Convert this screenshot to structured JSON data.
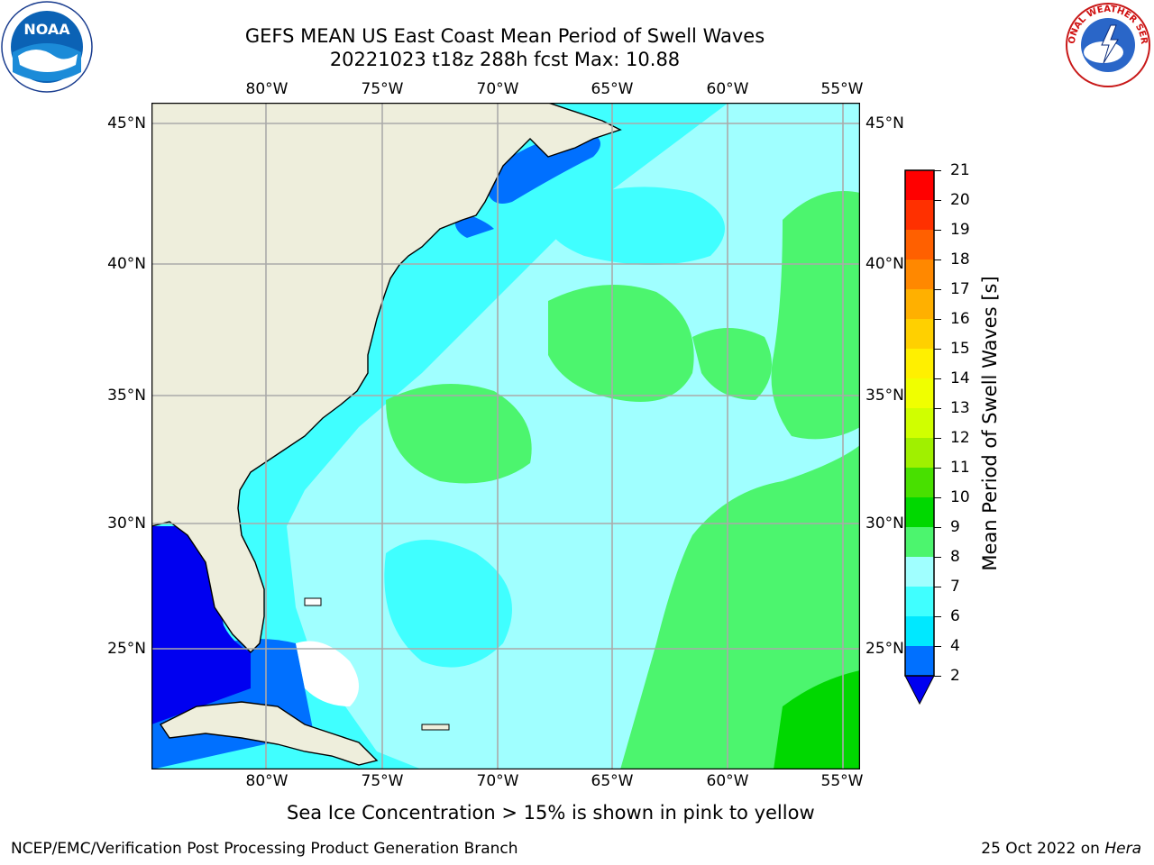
{
  "header": {
    "title_line1": "GEFS MEAN US East Coast Mean Period of Swell Waves",
    "title_line2": "20221023 t18z 288h fcst   Max: 10.88"
  },
  "logos": {
    "left": "noaa-logo",
    "left_text": "NOAA",
    "right": "national-weather-service-logo",
    "right_text": "NATIONAL WEATHER SERVICE"
  },
  "map": {
    "longitude_labels": [
      "80°W",
      "75°W",
      "70°W",
      "65°W",
      "60°W",
      "55°W"
    ],
    "latitude_labels": [
      "45°N",
      "40°N",
      "35°N",
      "30°N",
      "25°N"
    ],
    "extent": {
      "lon_min": -85,
      "lon_max": -54.5,
      "lat_min": 20.5,
      "lat_max": 46
    },
    "land_color": "#eeeedc",
    "grid_color": "#aaaaaa"
  },
  "colorbar": {
    "label": "Mean Period of Swell Waves [s]",
    "ticks": [
      "2",
      "4",
      "6",
      "7",
      "8",
      "9",
      "10",
      "11",
      "12",
      "13",
      "14",
      "15",
      "16",
      "17",
      "18",
      "19",
      "20",
      "21"
    ],
    "colors": [
      "#0070ff",
      "#00e8ff",
      "#40ffff",
      "#a0ffff",
      "#4cf56e",
      "#00d800",
      "#48e000",
      "#a0f000",
      "#d0ff00",
      "#f0ff00",
      "#fff000",
      "#ffd000",
      "#ffb000",
      "#ff8800",
      "#ff6000",
      "#ff3000",
      "#ff0000"
    ],
    "extend_min_color": "#0000f0"
  },
  "footer": {
    "note": "Sea Ice Concentration > 15% is shown in pink to yellow",
    "credit": "NCEP/EMC/Verification Post Processing Product Generation Branch",
    "date": "25 Oct 2022 on",
    "machine": "Hera"
  }
}
